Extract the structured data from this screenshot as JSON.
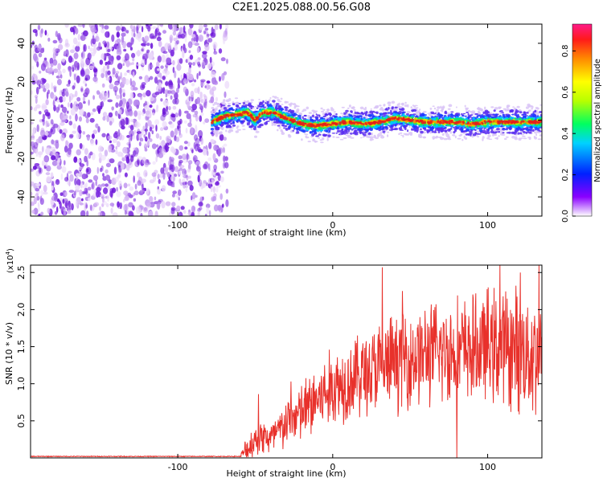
{
  "title": "C2E1.2025.088.00.56.G08",
  "colors": {
    "snr_line": "#e8312b",
    "axis": "#000000",
    "background": "#ffffff",
    "noise_purple": "#7c2be0",
    "trace_red": "#e3201a"
  },
  "chart_data": [
    {
      "type": "heatmap",
      "xlabel": "Height of straight line (km)",
      "ylabel": "Frequency (Hz)",
      "xlim": [
        -195,
        135
      ],
      "ylim": [
        -50,
        50
      ],
      "x_ticks": [
        -100,
        0,
        100
      ],
      "y_ticks": [
        -40,
        -20,
        0,
        20,
        40
      ],
      "x_tick_labels": [
        "-100",
        "0",
        "100"
      ],
      "y_tick_labels": [
        "-40",
        "-20",
        "0",
        "20",
        "40"
      ],
      "noise_region_x": [
        -195,
        -68
      ],
      "trace": {
        "x": [
          -78,
          -70,
          -60,
          -55,
          -50,
          -45,
          -38,
          -30,
          -20,
          -10,
          0,
          10,
          20,
          30,
          40,
          50,
          60,
          70,
          80,
          90,
          100,
          110,
          120,
          135
        ],
        "y": [
          -1,
          2,
          3,
          4,
          0,
          4,
          4,
          1,
          -2,
          -3,
          -2,
          -1,
          -2,
          -1,
          1,
          0,
          -1,
          -1,
          -1,
          -2,
          -1,
          -1,
          -1,
          -1
        ]
      },
      "colorbar": {
        "label": "Normalized spectral amplitude",
        "range": [
          0,
          0.93
        ],
        "ticks": [
          0.0,
          0.2,
          0.4,
          0.6,
          0.8
        ],
        "tick_labels": [
          "0.0",
          "0.2",
          "0.4",
          "0.6",
          "0.8"
        ]
      },
      "grid": false
    },
    {
      "type": "line",
      "xlabel": "Height of straight line (km)",
      "ylabel": "SNR (10 * v/v)",
      "y_exponent_label": "(x10",
      "y_exponent_value": "4",
      "y_exponent_close": ")",
      "xlim": [
        -195,
        135
      ],
      "ylim": [
        0,
        2.6
      ],
      "x_ticks": [
        -100,
        0,
        100
      ],
      "y_ticks": [
        0.5,
        1.0,
        1.5,
        2.0,
        2.5
      ],
      "x_tick_labels": [
        "-100",
        "0",
        "100"
      ],
      "y_tick_labels": [
        "0.5",
        "1.0",
        "1.5",
        "2.0",
        "2.5"
      ],
      "series": [
        {
          "color": "#e8312b",
          "envelope_x": [
            -195,
            -60,
            -55,
            -50,
            -45,
            -40,
            -35,
            -30,
            -25,
            -20,
            -15,
            -10,
            -5,
            0,
            10,
            20,
            30,
            40,
            50,
            60,
            70,
            80,
            90,
            100,
            110,
            120,
            135
          ],
          "envelope_mean": [
            0.02,
            0.02,
            0.12,
            0.25,
            0.3,
            0.25,
            0.35,
            0.45,
            0.55,
            0.6,
            0.7,
            0.8,
            0.85,
            0.95,
            1.05,
            1.15,
            1.2,
            1.3,
            1.35,
            1.4,
            1.42,
            1.45,
            1.45,
            1.5,
            1.5,
            1.45,
            1.4
          ],
          "envelope_amp": [
            0.0,
            0.0,
            0.25,
            0.25,
            0.3,
            0.3,
            0.35,
            0.4,
            0.45,
            0.5,
            0.55,
            0.6,
            0.6,
            0.65,
            0.65,
            0.7,
            0.75,
            0.75,
            0.8,
            0.8,
            0.85,
            0.85,
            0.85,
            0.9,
            0.95,
            1.0,
            1.0
          ],
          "peaks": [
            [
              -48,
              0.86
            ],
            [
              32,
              2.57
            ],
            [
              45,
              2.25
            ],
            [
              80,
              2.5
            ],
            [
              108,
              2.6
            ],
            [
              121,
              2.5
            ],
            [
              133,
              2.6
            ],
            [
              -27,
              1.03
            ]
          ],
          "dips": [
            [
              80,
              0.0
            ]
          ]
        }
      ],
      "grid": false
    }
  ]
}
